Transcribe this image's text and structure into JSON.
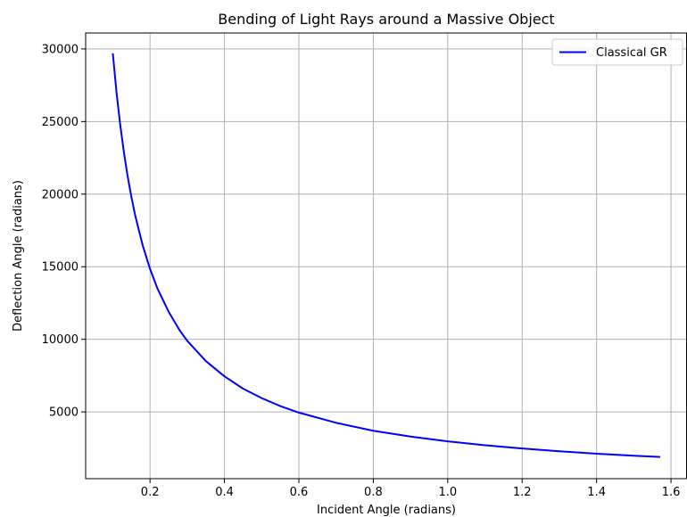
{
  "chart_data": {
    "type": "line",
    "title": "Bending of Light Rays around a Massive Object",
    "xlabel": "Incident Angle (radians)",
    "ylabel": "Deflection Angle (radians)",
    "xlim": [
      0.027,
      1.643
    ],
    "ylim": [
      400,
      31100
    ],
    "xticks": [
      0.2,
      0.4,
      0.6,
      0.8,
      1.0,
      1.2,
      1.4,
      1.6
    ],
    "xtick_labels": [
      "0.2",
      "0.4",
      "0.6",
      "0.8",
      "1.0",
      "1.2",
      "1.4",
      "1.6"
    ],
    "yticks": [
      5000,
      10000,
      15000,
      20000,
      25000,
      30000
    ],
    "ytick_labels": [
      "5000",
      "10000",
      "15000",
      "20000",
      "25000",
      "30000"
    ],
    "grid": true,
    "legend_position": "top-right",
    "series": [
      {
        "name": "Classical GR",
        "color": "#0000ff",
        "x": [
          0.1,
          0.11,
          0.12,
          0.13,
          0.14,
          0.15,
          0.16,
          0.18,
          0.2,
          0.22,
          0.25,
          0.28,
          0.3,
          0.35,
          0.4,
          0.45,
          0.5,
          0.55,
          0.6,
          0.7,
          0.8,
          0.9,
          1.0,
          1.1,
          1.2,
          1.3,
          1.4,
          1.5,
          1.5708
        ],
        "y": [
          29700,
          27000,
          24750,
          22850,
          21200,
          19800,
          18550,
          16500,
          14850,
          13500,
          11900,
          10600,
          9900,
          8500,
          7450,
          6600,
          5950,
          5400,
          4950,
          4250,
          3700,
          3300,
          2970,
          2700,
          2480,
          2290,
          2120,
          1980,
          1900
        ]
      }
    ]
  }
}
